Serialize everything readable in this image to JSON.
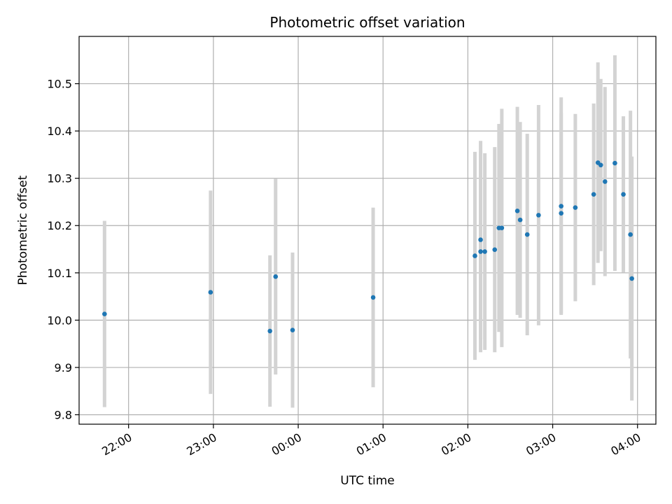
{
  "chart_data": {
    "type": "scatter",
    "title": "Photometric offset variation",
    "xlabel": "UTC time",
    "ylabel": "Photometric offset",
    "x_axis": {
      "kind": "time",
      "range": [
        "21:25",
        "04:13"
      ],
      "ticks": [
        "22:00",
        "23:00",
        "00:00",
        "01:00",
        "02:00",
        "03:00",
        "04:00"
      ],
      "tick_rotation_deg": 30
    },
    "y_axis": {
      "range": [
        9.78,
        10.6
      ],
      "ticks": [
        "9.8",
        "9.9",
        "10.0",
        "10.1",
        "10.2",
        "10.3",
        "10.4",
        "10.5"
      ]
    },
    "grid": true,
    "colors": {
      "point": "#1f77b4",
      "errorbar": "#d3d3d3",
      "grid": "#b0b0b0"
    },
    "points": [
      {
        "t": "21:43",
        "y": 10.013,
        "err": 0.197
      },
      {
        "t": "22:58",
        "y": 10.059,
        "err": 0.215
      },
      {
        "t": "23:40",
        "y": 9.977,
        "err": 0.16
      },
      {
        "t": "23:44",
        "y": 10.092,
        "err": 0.207
      },
      {
        "t": "23:56",
        "y": 9.979,
        "err": 0.164
      },
      {
        "t": "00:53",
        "y": 10.048,
        "err": 0.19
      },
      {
        "t": "02:05",
        "y": 10.136,
        "err": 0.22
      },
      {
        "t": "02:09",
        "y": 10.145,
        "err": 0.213
      },
      {
        "t": "02:09",
        "y": 10.17,
        "err": 0.209
      },
      {
        "t": "02:12",
        "y": 10.145,
        "err": 0.208
      },
      {
        "t": "02:19",
        "y": 10.149,
        "err": 0.217
      },
      {
        "t": "02:22",
        "y": 10.195,
        "err": 0.22
      },
      {
        "t": "02:24",
        "y": 10.195,
        "err": 0.252
      },
      {
        "t": "02:35",
        "y": 10.231,
        "err": 0.22
      },
      {
        "t": "02:37",
        "y": 10.212,
        "err": 0.207
      },
      {
        "t": "02:42",
        "y": 10.181,
        "err": 0.213
      },
      {
        "t": "02:50",
        "y": 10.222,
        "err": 0.233
      },
      {
        "t": "03:06",
        "y": 10.226,
        "err": 0.212
      },
      {
        "t": "03:06",
        "y": 10.241,
        "err": 0.23
      },
      {
        "t": "03:16",
        "y": 10.238,
        "err": 0.198
      },
      {
        "t": "03:29",
        "y": 10.266,
        "err": 0.192
      },
      {
        "t": "03:32",
        "y": 10.333,
        "err": 0.212
      },
      {
        "t": "03:34",
        "y": 10.328,
        "err": 0.182
      },
      {
        "t": "03:37",
        "y": 10.293,
        "err": 0.2
      },
      {
        "t": "03:44",
        "y": 10.332,
        "err": 0.228
      },
      {
        "t": "03:50",
        "y": 10.266,
        "err": 0.165
      },
      {
        "t": "03:55",
        "y": 10.181,
        "err": 0.262
      },
      {
        "t": "03:56",
        "y": 10.088,
        "err": 0.258
      }
    ]
  }
}
